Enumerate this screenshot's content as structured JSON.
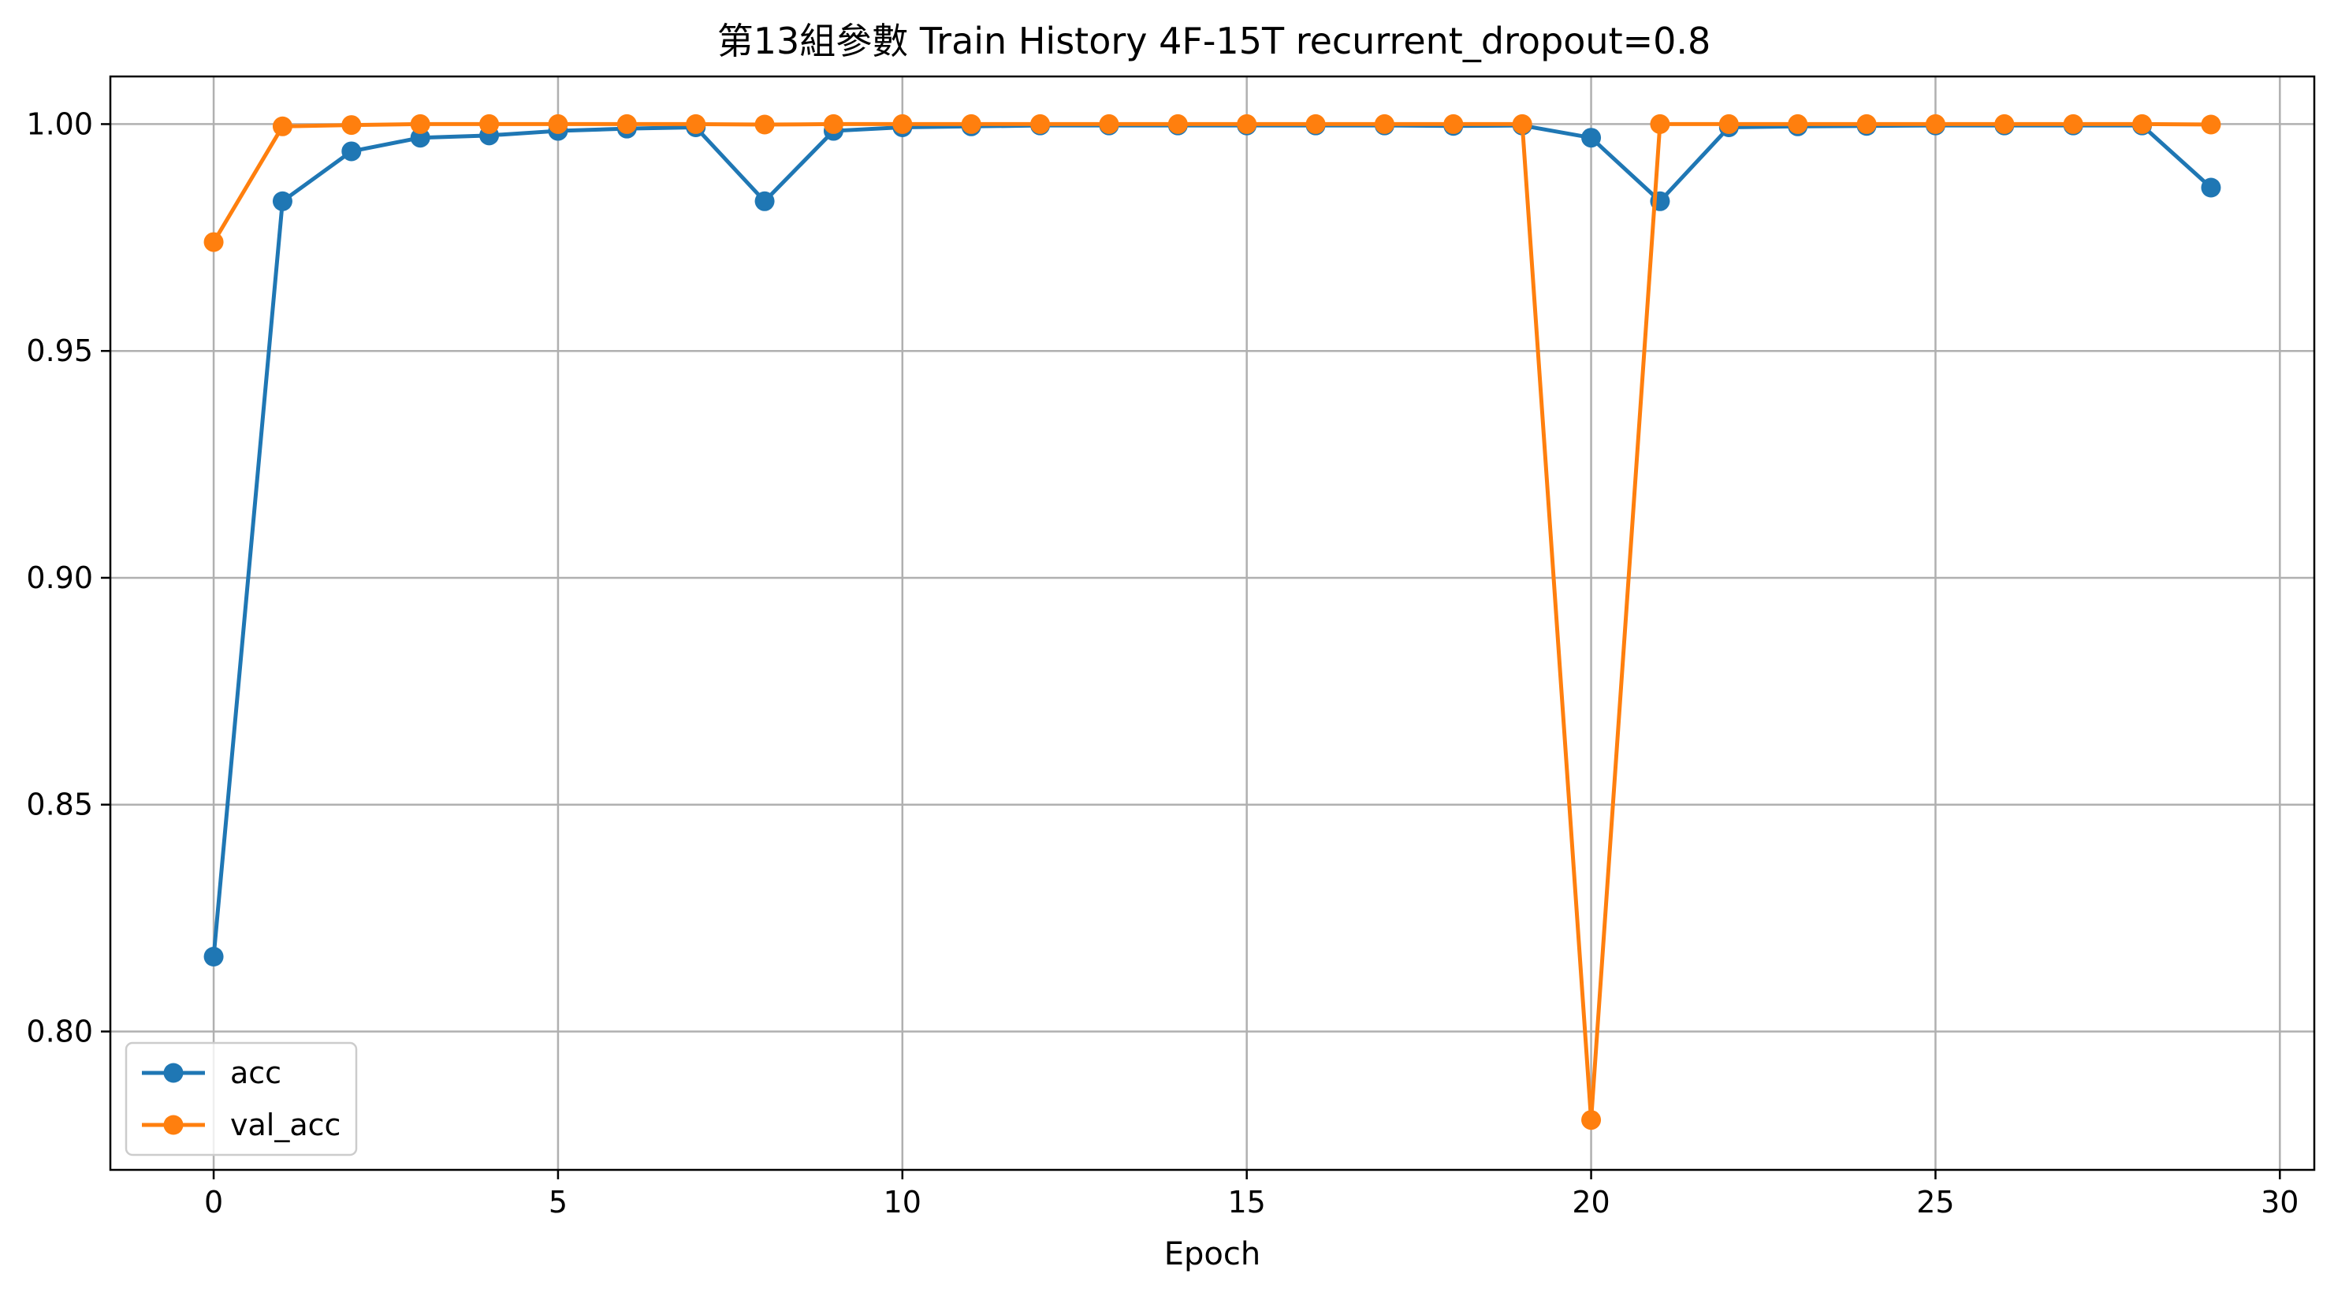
{
  "chart_data": {
    "type": "line",
    "title": "第13組參數 Train History 4F-15T recurrent_dropout=0.8",
    "xlabel": "Epoch",
    "ylabel": "",
    "xlim": [
      -1.5,
      30.5
    ],
    "ylim": [
      0.7695,
      1.0105
    ],
    "xticks": [
      0,
      5,
      10,
      15,
      20,
      25,
      30
    ],
    "xtick_labels": [
      "0",
      "5",
      "10",
      "15",
      "20",
      "25",
      "30"
    ],
    "yticks": [
      0.8,
      0.85,
      0.9,
      0.95,
      1.0
    ],
    "ytick_labels": [
      "0.80",
      "0.85",
      "0.90",
      "0.95",
      "1.00"
    ],
    "grid": true,
    "legend_position": "lower-left",
    "x": [
      0,
      1,
      2,
      3,
      4,
      5,
      6,
      7,
      8,
      9,
      10,
      11,
      12,
      13,
      14,
      15,
      16,
      17,
      18,
      19,
      20,
      21,
      22,
      23,
      24,
      25,
      26,
      27,
      28,
      29
    ],
    "series": [
      {
        "name": "acc",
        "color": "#1f77b4",
        "marker": "circle",
        "values": [
          0.8165,
          0.983,
          0.994,
          0.997,
          0.9975,
          0.9985,
          0.999,
          0.9993,
          0.983,
          0.9985,
          0.9993,
          0.9995,
          0.9997,
          0.9997,
          0.9997,
          0.9997,
          0.9997,
          0.9997,
          0.9996,
          0.9997,
          0.997,
          0.983,
          0.9993,
          0.9995,
          0.9996,
          0.9997,
          0.9997,
          0.9997,
          0.9997,
          0.986
        ]
      },
      {
        "name": "val_acc",
        "color": "#ff7f0e",
        "marker": "circle",
        "values": [
          0.974,
          0.9995,
          0.9998,
          1.0,
          1.0,
          1.0,
          1.0,
          1.0,
          0.9999,
          1.0,
          1.0,
          1.0,
          1.0,
          1.0,
          1.0,
          1.0,
          1.0,
          1.0,
          1.0,
          1.0,
          0.7805,
          1.0,
          1.0,
          1.0,
          1.0,
          1.0,
          1.0,
          1.0,
          1.0,
          0.9999
        ]
      }
    ]
  }
}
